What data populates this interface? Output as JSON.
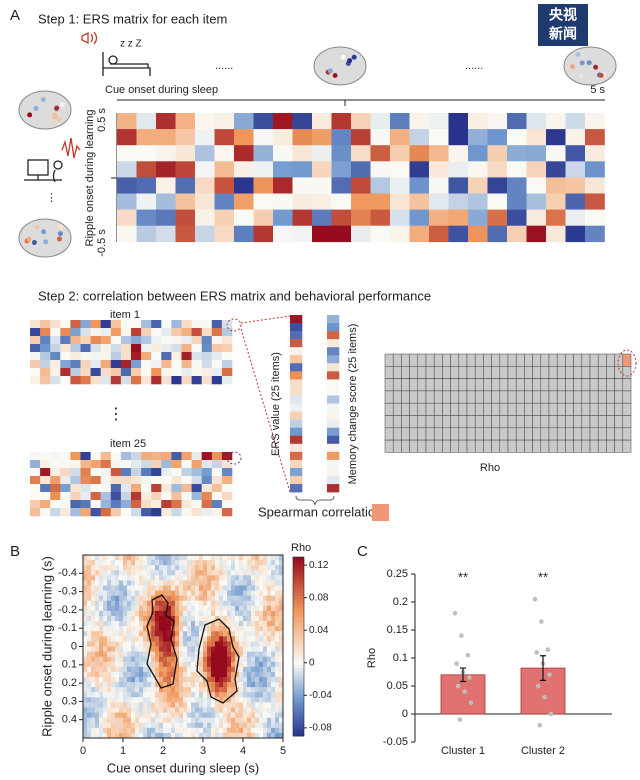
{
  "watermark": [
    "央视",
    "新闻"
  ],
  "panels": {
    "a": "A",
    "b": "B",
    "c": "C"
  },
  "step1": {
    "title": "Step 1: ERS matrix for each item",
    "sleep_icon": "z z Z",
    "ellipsis": [
      "......",
      "......"
    ],
    "x_label": "Cue onset during sleep",
    "x_end": "5 s",
    "y_label": "Ripple onset during learning",
    "y_top": "0.5 s",
    "y_bottom": "-0.5 s"
  },
  "step2": {
    "title": "Step 2: correlation between ERS matrix and behavioral performance",
    "item_first": "item 1",
    "item_last": "item 25",
    "ers_label": "ERS value (25 items)",
    "memory_label": "Memory change score (25 items)",
    "spearman": "Spearman correlation",
    "rho": "Rho"
  },
  "panel_b": {
    "x_label": "Cue onset during sleep (s)",
    "y_label": "Ripple onset during learning (s)",
    "xlim": [
      0,
      5
    ],
    "xticks": [
      0,
      1,
      2,
      3,
      4,
      5
    ],
    "ylim": [
      -0.5,
      0.5
    ],
    "y_inverted": true,
    "yticks": [
      -0.4,
      -0.3,
      -0.2,
      -0.1,
      0,
      0.1,
      0.2,
      0.3,
      0.4
    ],
    "colorbar_title": "Rho",
    "colorbar_lim": [
      -0.09,
      0.13
    ],
    "colorbar_ticks": [
      -0.08,
      -0.04,
      0,
      0.04,
      0.08,
      0.12
    ]
  },
  "chart_data": {
    "type": "bar",
    "categories": [
      "Cluster 1",
      "Cluster 2"
    ],
    "values": [
      0.07,
      0.082
    ],
    "errors": [
      0.012,
      0.022
    ],
    "points": [
      [
        0.18,
        0.14,
        0.105,
        0.09,
        0.075,
        0.065,
        0.05,
        0.04,
        0.02,
        -0.01
      ],
      [
        0.205,
        0.165,
        0.115,
        0.11,
        0.09,
        0.07,
        0.05,
        0.03,
        0,
        -0.02
      ]
    ],
    "annotations": [
      "**",
      "**"
    ],
    "y_label": "Rho",
    "ylim": [
      -0.05,
      0.25
    ],
    "yticks": [
      -0.05,
      0,
      0.05,
      0.1,
      0.15,
      0.2,
      0.25
    ],
    "color": "#e07272"
  }
}
